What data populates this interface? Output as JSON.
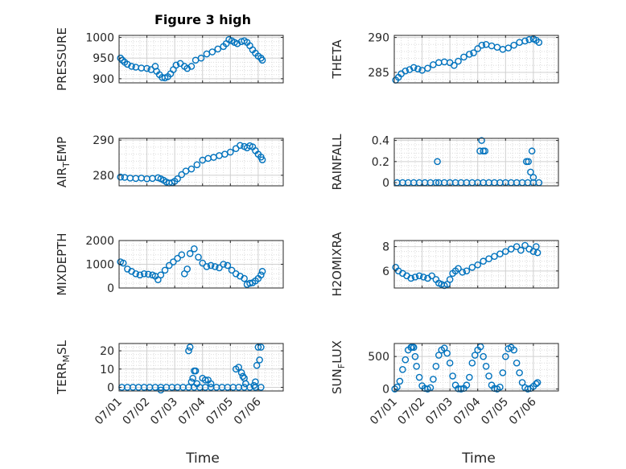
{
  "figure": {
    "title": "Figure 3 high"
  },
  "chart_data": [
    {
      "type": "scatter",
      "ylabel": "PRESSURE",
      "xlim": [
        0,
        5.9
      ],
      "ylim": [
        890,
        1005
      ],
      "yticks": [
        900,
        950,
        1000
      ],
      "ytick_labels": [
        "900",
        "950",
        "1000"
      ],
      "x": [
        0.05,
        0.12,
        0.2,
        0.3,
        0.45,
        0.6,
        0.8,
        1.0,
        1.15,
        1.3,
        1.35,
        1.45,
        1.55,
        1.65,
        1.75,
        1.85,
        1.95,
        2.05,
        2.2,
        2.35,
        2.45,
        2.6,
        2.75,
        2.95,
        3.15,
        3.35,
        3.55,
        3.75,
        3.85,
        3.95,
        4.05,
        4.15,
        4.25,
        4.4,
        4.5,
        4.6,
        4.7,
        4.8,
        4.9,
        5.0,
        5.1,
        5.15
      ],
      "y": [
        950,
        945,
        940,
        935,
        930,
        928,
        926,
        925,
        922,
        930,
        918,
        910,
        903,
        902,
        905,
        912,
        922,
        933,
        937,
        930,
        925,
        930,
        945,
        950,
        960,
        965,
        972,
        978,
        985,
        995,
        992,
        988,
        985,
        990,
        992,
        988,
        980,
        970,
        962,
        955,
        950,
        945
      ]
    },
    {
      "type": "scatter",
      "ylabel": "THETA",
      "xlim": [
        0,
        5.9
      ],
      "ylim": [
        283.5,
        290.3
      ],
      "yticks": [
        285,
        290
      ],
      "ytick_labels": [
        "285",
        "290"
      ],
      "x": [
        0.05,
        0.15,
        0.25,
        0.4,
        0.55,
        0.7,
        0.85,
        1.0,
        1.2,
        1.4,
        1.6,
        1.8,
        2.0,
        2.15,
        2.3,
        2.5,
        2.7,
        2.85,
        3.0,
        3.15,
        3.3,
        3.5,
        3.7,
        3.9,
        4.1,
        4.3,
        4.5,
        4.7,
        4.85,
        5.0,
        5.1,
        5.2
      ],
      "y": [
        283.9,
        284.3,
        284.8,
        285.2,
        285.4,
        285.7,
        285.5,
        285.3,
        285.6,
        286.1,
        286.4,
        286.5,
        286.4,
        286.0,
        286.6,
        287.2,
        287.6,
        287.8,
        288.4,
        288.9,
        289.0,
        288.8,
        288.6,
        288.3,
        288.5,
        288.9,
        289.3,
        289.5,
        289.7,
        289.8,
        289.6,
        289.3
      ]
    },
    {
      "type": "scatter",
      "ylabel": "AIR_TEMP",
      "xlim": [
        0,
        5.9
      ],
      "ylim": [
        277,
        290.5
      ],
      "yticks": [
        280,
        290
      ],
      "ytick_labels": [
        "280",
        "290"
      ],
      "x": [
        0.05,
        0.2,
        0.4,
        0.6,
        0.8,
        1.0,
        1.2,
        1.4,
        1.5,
        1.6,
        1.7,
        1.8,
        1.9,
        2.0,
        2.1,
        2.25,
        2.4,
        2.6,
        2.8,
        3.0,
        3.2,
        3.4,
        3.6,
        3.8,
        4.0,
        4.2,
        4.35,
        4.5,
        4.6,
        4.7,
        4.8,
        4.9,
        5.0,
        5.1,
        5.15
      ],
      "y": [
        279.5,
        279.4,
        279.2,
        279.1,
        279.2,
        279.0,
        279.1,
        279.3,
        279.0,
        278.6,
        278.1,
        277.8,
        277.9,
        278.3,
        279.0,
        280.2,
        281.2,
        281.8,
        283.0,
        284.3,
        284.8,
        285.1,
        285.6,
        286.0,
        286.6,
        287.6,
        288.5,
        288.2,
        287.8,
        288.4,
        288.1,
        287.0,
        286.0,
        285.2,
        284.4
      ]
    },
    {
      "type": "scatter",
      "ylabel": "RAINFALL",
      "xlim": [
        0,
        5.9
      ],
      "ylim": [
        -0.03,
        0.42
      ],
      "yticks": [
        0,
        0.2,
        0.4
      ],
      "ytick_labels": [
        "0",
        "0.2",
        "0.4"
      ],
      "x": [
        0.1,
        0.3,
        0.5,
        0.7,
        0.9,
        1.1,
        1.3,
        1.5,
        1.6,
        1.8,
        2.0,
        2.2,
        2.4,
        2.6,
        2.8,
        3.0,
        3.2,
        3.4,
        3.6,
        3.8,
        4.0,
        4.2,
        4.4,
        4.6,
        4.8,
        5.0,
        5.2,
        1.55,
        3.08,
        3.14,
        3.2,
        3.26,
        4.75,
        4.82,
        4.9,
        4.95,
        5.0
      ],
      "y": [
        0,
        0,
        0,
        0,
        0,
        0,
        0,
        0,
        0,
        0,
        0,
        0,
        0,
        0,
        0,
        0,
        0,
        0,
        0,
        0,
        0,
        0,
        0,
        0,
        0,
        0,
        0,
        0.2,
        0.3,
        0.4,
        0.3,
        0.3,
        0.2,
        0.2,
        0.1,
        0.3,
        0.05
      ]
    },
    {
      "type": "scatter",
      "ylabel": "MIXDEPTH",
      "xlim": [
        0,
        5.9
      ],
      "ylim": [
        0,
        2000
      ],
      "yticks": [
        0,
        1000,
        2000
      ],
      "ytick_labels": [
        "0",
        "1000",
        "2000"
      ],
      "x": [
        0.05,
        0.15,
        0.3,
        0.45,
        0.6,
        0.75,
        0.9,
        1.05,
        1.2,
        1.3,
        1.4,
        1.5,
        1.65,
        1.8,
        1.95,
        2.1,
        2.25,
        2.35,
        2.45,
        2.55,
        2.7,
        2.85,
        3.0,
        3.15,
        3.3,
        3.45,
        3.6,
        3.75,
        3.9,
        4.05,
        4.2,
        4.35,
        4.5,
        4.6,
        4.7,
        4.8,
        4.9,
        5.0,
        5.1,
        5.15
      ],
      "y": [
        1100,
        1050,
        800,
        700,
        600,
        550,
        600,
        580,
        550,
        500,
        350,
        550,
        750,
        950,
        1100,
        1250,
        1400,
        600,
        800,
        1450,
        1650,
        1300,
        1050,
        900,
        950,
        900,
        850,
        1000,
        950,
        750,
        600,
        500,
        400,
        150,
        200,
        220,
        300,
        400,
        550,
        700
      ]
    },
    {
      "type": "scatter",
      "ylabel": "H2OMIXRA",
      "xlim": [
        0,
        5.9
      ],
      "ylim": [
        4.6,
        8.5
      ],
      "yticks": [
        6,
        8
      ],
      "ytick_labels": [
        "6",
        "8"
      ],
      "x": [
        0.05,
        0.15,
        0.3,
        0.45,
        0.6,
        0.75,
        0.9,
        1.05,
        1.2,
        1.35,
        1.5,
        1.6,
        1.7,
        1.8,
        1.9,
        2.0,
        2.1,
        2.2,
        2.3,
        2.45,
        2.6,
        2.8,
        3.0,
        3.2,
        3.4,
        3.6,
        3.8,
        4.0,
        4.2,
        4.4,
        4.55,
        4.7,
        4.85,
        5.0,
        5.1,
        5.15
      ],
      "y": [
        6.3,
        6.0,
        5.8,
        5.6,
        5.4,
        5.5,
        5.6,
        5.5,
        5.4,
        5.6,
        5.3,
        5.0,
        4.9,
        4.8,
        4.9,
        5.3,
        5.8,
        6.0,
        6.2,
        5.9,
        6.0,
        6.3,
        6.5,
        6.8,
        7.0,
        7.2,
        7.4,
        7.6,
        7.8,
        8.0,
        7.7,
        8.1,
        7.8,
        7.6,
        8.0,
        7.5
      ]
    },
    {
      "type": "scatter",
      "ylabel": "TERR_MSL",
      "xlim": [
        0,
        5.9
      ],
      "ylim": [
        -2,
        24
      ],
      "yticks": [
        0,
        10,
        20
      ],
      "ytick_labels": [
        "0",
        "10",
        "20"
      ],
      "x": [
        0.1,
        0.3,
        0.5,
        0.7,
        0.9,
        1.1,
        1.3,
        1.5,
        1.7,
        1.9,
        2.1,
        2.3,
        2.5,
        2.7,
        2.9,
        3.1,
        3.3,
        3.5,
        3.7,
        3.9,
        4.1,
        4.3,
        4.5,
        4.7,
        4.9,
        5.1,
        1.5,
        2.5,
        2.55,
        2.6,
        2.65,
        2.7,
        2.75,
        2.8,
        3.0,
        3.1,
        3.2,
        3.3,
        4.2,
        4.3,
        4.4,
        4.45,
        4.5,
        4.55,
        4.85,
        4.9,
        4.95,
        5.0,
        5.05,
        5.1
      ],
      "y": [
        0,
        0,
        0,
        0,
        0,
        0,
        0,
        0,
        0,
        0,
        0,
        0,
        0,
        0,
        0,
        0,
        0,
        0,
        0,
        0,
        0,
        0,
        0,
        0,
        0,
        0,
        -1.5,
        20,
        22,
        3,
        5,
        9,
        9,
        2,
        5,
        4,
        4,
        2,
        10,
        11,
        8,
        6,
        5,
        2,
        1,
        3,
        12,
        22,
        15,
        22
      ]
    },
    {
      "type": "scatter",
      "ylabel": "SUN_FLUX",
      "xlim": [
        0,
        5.9
      ],
      "ylim": [
        -30,
        700
      ],
      "yticks": [
        0,
        500
      ],
      "ytick_labels": [
        "0",
        "500"
      ],
      "xticks": [
        0,
        1,
        2,
        3,
        4,
        5
      ],
      "xtick_labels": [
        "07/01",
        "07/02",
        "07/03",
        "07/04",
        "07/05",
        "07/06"
      ],
      "x": [
        0.02,
        0.1,
        0.2,
        0.3,
        0.4,
        0.5,
        0.6,
        0.65,
        0.7,
        0.75,
        0.8,
        0.9,
        1.0,
        1.1,
        1.2,
        1.3,
        1.4,
        1.5,
        1.6,
        1.7,
        1.8,
        1.9,
        2.0,
        2.1,
        2.2,
        2.3,
        2.4,
        2.5,
        2.6,
        2.7,
        2.8,
        2.9,
        3.0,
        3.1,
        3.2,
        3.3,
        3.4,
        3.5,
        3.6,
        3.7,
        3.8,
        3.9,
        4.0,
        4.1,
        4.2,
        4.3,
        4.4,
        4.5,
        4.6,
        4.7,
        4.8,
        4.9,
        5.0,
        5.1,
        5.15
      ],
      "y": [
        0,
        30,
        120,
        300,
        450,
        600,
        640,
        650,
        640,
        500,
        350,
        180,
        50,
        10,
        0,
        20,
        150,
        350,
        520,
        600,
        630,
        550,
        400,
        200,
        60,
        5,
        0,
        10,
        60,
        180,
        400,
        520,
        600,
        650,
        500,
        350,
        200,
        60,
        10,
        0,
        30,
        250,
        500,
        620,
        640,
        600,
        400,
        250,
        100,
        20,
        0,
        10,
        40,
        80,
        100
      ]
    }
  ],
  "x_axis": {
    "label": "Time",
    "tick_labels": [
      "07/01",
      "07/02",
      "07/03",
      "07/04",
      "07/05",
      "07/06"
    ]
  }
}
